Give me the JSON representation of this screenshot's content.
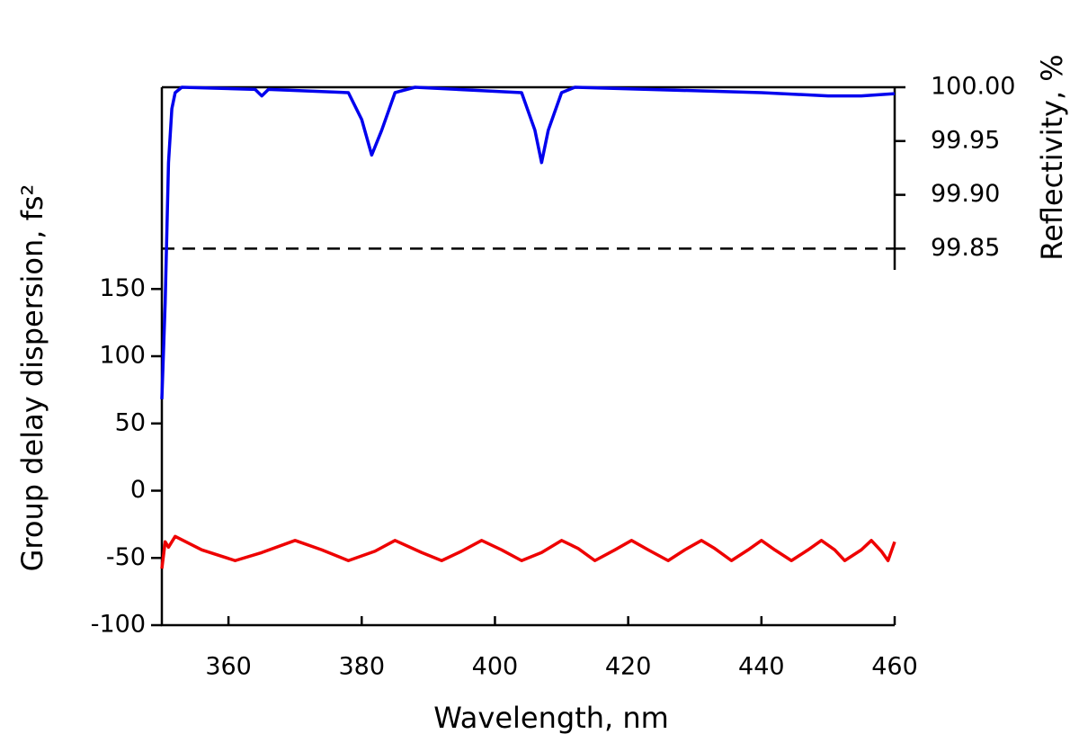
{
  "chart_data": {
    "type": "line",
    "x_label": "Wavelength, nm",
    "y_label": "Group delay dispersion, fs²",
    "y2_label": "Reflectivity, %",
    "xlim": [
      350,
      460
    ],
    "xticks": [
      360,
      380,
      400,
      420,
      440,
      460
    ],
    "ylim": [
      -100,
      300
    ],
    "yticks": [
      -100,
      -50,
      0,
      50,
      100,
      150
    ],
    "y2lim": [
      99.5,
      100.0
    ],
    "y2ticks": [
      {
        "value": 100.0,
        "label": "100.00"
      },
      99.95,
      {
        "value": 99.9,
        "label": "99.90"
      },
      99.85
    ],
    "reference_line": {
      "value": 99.85,
      "axis": "y2",
      "style": "dashed",
      "color": "#000000"
    },
    "series": [
      {
        "color": "#0000ee",
        "axis": "y2",
        "x": [
          350,
          350.5,
          351,
          351.5,
          352,
          353,
          364,
          365,
          366,
          378,
          380,
          381.5,
          383,
          385,
          388,
          404,
          406,
          407,
          408,
          410,
          412,
          440,
          450,
          455,
          460
        ],
        "values": [
          99.71,
          99.8,
          99.93,
          99.98,
          99.995,
          100.0,
          99.998,
          99.992,
          99.998,
          99.995,
          99.97,
          99.937,
          99.96,
          99.995,
          100.0,
          99.995,
          99.96,
          99.93,
          99.96,
          99.995,
          100.0,
          99.995,
          99.992,
          99.992,
          99.994
        ]
      },
      {
        "color": "#ee0000",
        "axis": "y",
        "x": [
          350,
          350.5,
          351,
          351.5,
          352,
          356,
          361,
          365,
          370,
          374,
          378,
          382,
          385,
          389,
          392,
          395,
          398,
          401,
          404,
          407,
          410,
          412.5,
          415,
          418,
          420.5,
          423,
          426,
          428.5,
          431,
          433,
          435.5,
          438,
          440,
          442,
          444.5,
          447,
          449,
          451,
          452.5,
          455,
          456.5,
          458,
          459,
          460
        ],
        "values": [
          -58,
          -38,
          -42,
          -38,
          -34,
          -44,
          -52,
          -46,
          -37,
          -44,
          -52,
          -45,
          -37,
          -46,
          -52,
          -45,
          -37,
          -44,
          -52,
          -46,
          -37,
          -43,
          -52,
          -44,
          -37,
          -44,
          -52,
          -44,
          -37,
          -43,
          -52,
          -44,
          -37,
          -44,
          -52,
          -44,
          -37,
          -44,
          -52,
          -44,
          -37,
          -45,
          -52,
          -38
        ]
      }
    ]
  }
}
